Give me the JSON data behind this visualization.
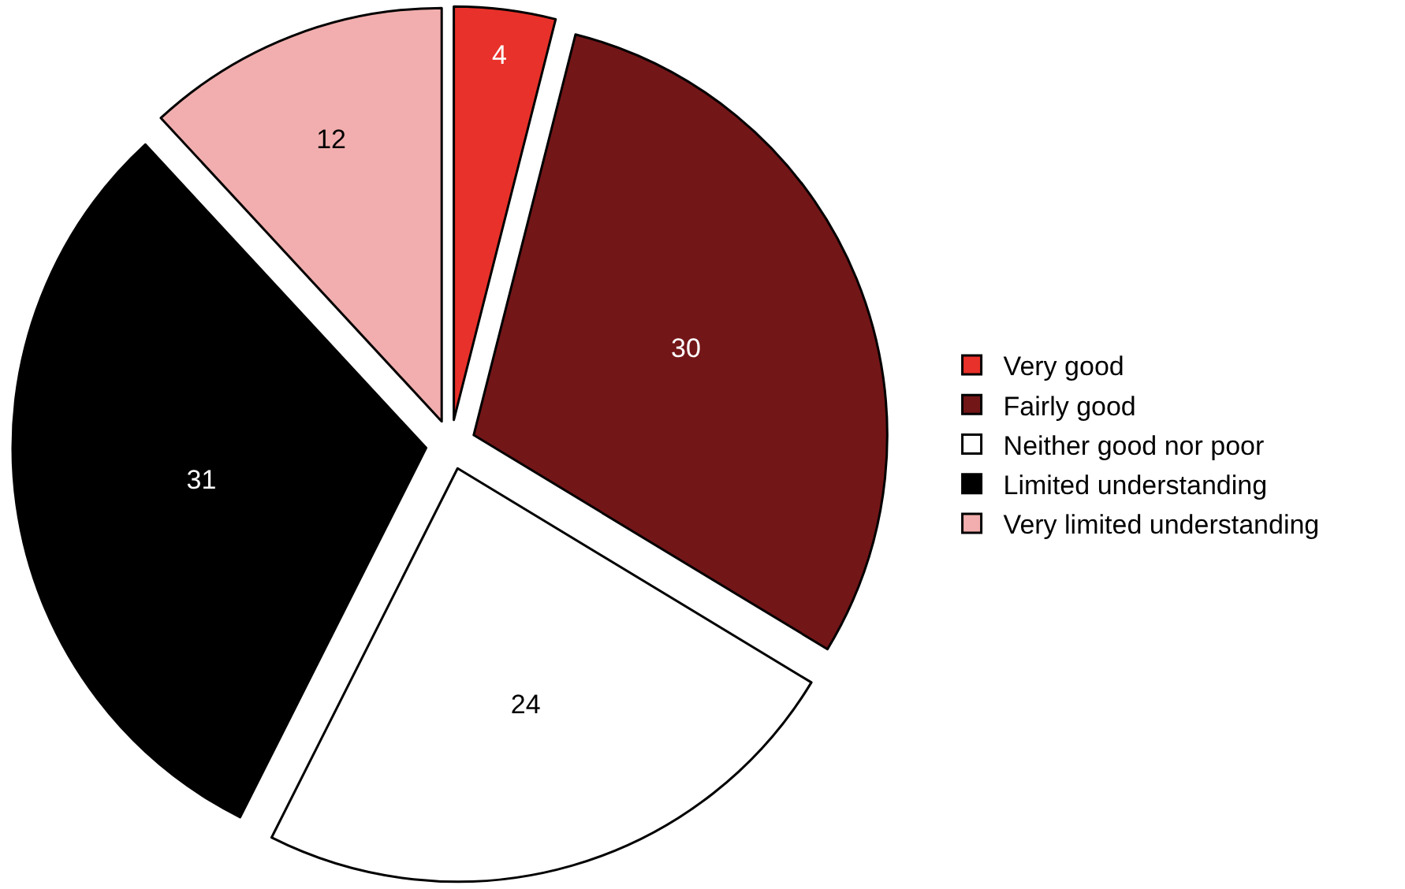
{
  "chart_data": {
    "type": "pie",
    "categories": [
      "Very good",
      "Fairly good",
      "Neither good nor poor",
      "Limited understanding",
      "Very limited understanding"
    ],
    "values": [
      4,
      30,
      24,
      31,
      12
    ],
    "colors": [
      "#e8312a",
      "#731618",
      "#ffffff",
      "#000000",
      "#f2aeae"
    ],
    "data_labels": true,
    "legend": "right"
  }
}
